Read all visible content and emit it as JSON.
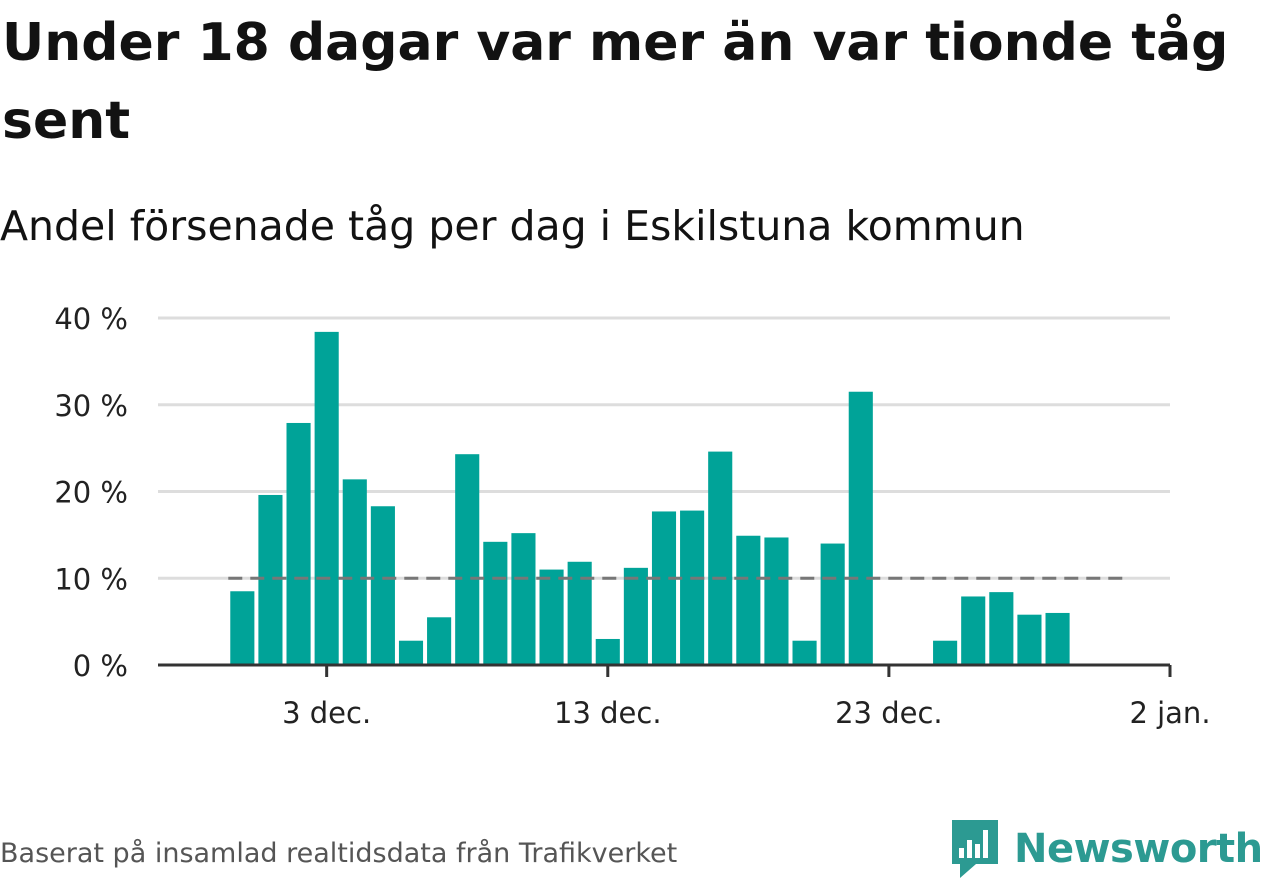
{
  "title": "Under 18 dagar var mer än var tionde tåg sent",
  "subtitle": "Andel försenade tåg per dag i Eskilstuna kommun",
  "source": "Baserat på insamlad realtidsdata från Trafikverket",
  "brand": {
    "name": "Newsworthy",
    "color": "#2c9a92"
  },
  "colors": {
    "bar": "#00a398",
    "grid": "#dddddd",
    "axis": "#333333",
    "reference": "#777777"
  },
  "chart_data": {
    "type": "bar",
    "x": [
      "2023-11-30",
      "2023-12-01",
      "2023-12-02",
      "2023-12-03",
      "2023-12-04",
      "2023-12-05",
      "2023-12-06",
      "2023-12-07",
      "2023-12-08",
      "2023-12-09",
      "2023-12-10",
      "2023-12-11",
      "2023-12-12",
      "2023-12-13",
      "2023-12-14",
      "2023-12-15",
      "2023-12-16",
      "2023-12-17",
      "2023-12-18",
      "2023-12-19",
      "2023-12-20",
      "2023-12-21",
      "2023-12-22",
      "2023-12-23",
      "2023-12-24",
      "2023-12-25",
      "2023-12-26",
      "2023-12-27",
      "2023-12-28",
      "2023-12-29",
      "2023-12-30",
      "2023-12-31"
    ],
    "values": [
      8.5,
      19.6,
      27.9,
      38.4,
      21.4,
      18.3,
      2.8,
      5.5,
      24.3,
      14.2,
      15.2,
      11.0,
      11.9,
      3.0,
      11.2,
      17.7,
      17.8,
      24.6,
      14.9,
      14.7,
      2.8,
      14.0,
      31.5,
      null,
      null,
      2.8,
      7.9,
      8.4,
      5.8,
      6.0,
      null,
      null
    ],
    "reference_line": {
      "value": 10,
      "style": "dashed"
    },
    "xlabel": "",
    "ylabel": "",
    "ylim": [
      0,
      40
    ],
    "yticks": [
      0,
      10,
      20,
      30,
      40
    ],
    "ytick_labels": [
      "0 %",
      "10 %",
      "20 %",
      "30 %",
      "40 %"
    ],
    "xticks": [
      "2023-12-03",
      "2023-12-13",
      "2023-12-23",
      "2024-01-02"
    ],
    "xtick_labels": [
      "3 dec.",
      "13 dec.",
      "23 dec.",
      "2 jan."
    ],
    "xlim": [
      "2023-11-27",
      "2024-01-02"
    ],
    "grid": true
  }
}
